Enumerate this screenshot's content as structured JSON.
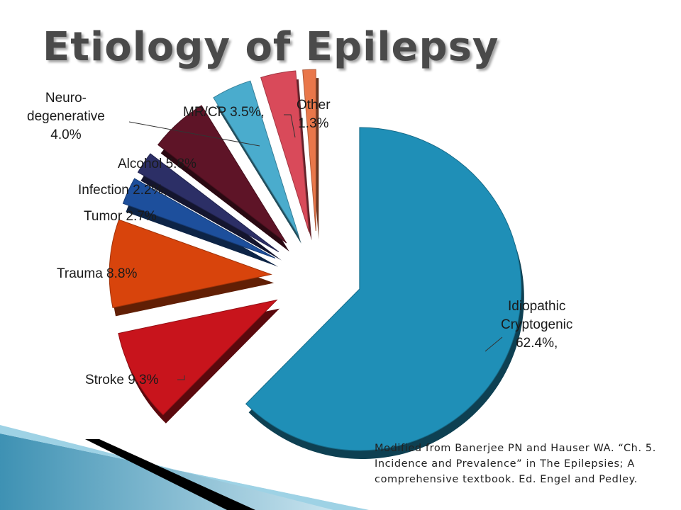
{
  "title": "Etiology of Epilepsy",
  "source_note": "Modified from Banerjee PN and Hauser WA. “Ch. 5. Incidence and Prevalence” in The Epilepsies; A comprehensive textbook. Ed. Engel and Pedley.",
  "labels": {
    "idiopathic": [
      "Idiopathic",
      "Cryptogenic",
      "62.4%,"
    ],
    "stroke": "Stroke 9.3%",
    "trauma": "Trauma 8.8%",
    "tumor": "Tumor 2.7%",
    "infection": "Infection 2.2%,",
    "alcohol": "Alcohol 5.8%",
    "neurodegenerative": [
      "Neuro-",
      "degenerative",
      "4.0%"
    ],
    "mrcp": "MR/CP 3.5%,",
    "other": [
      "Other",
      "1.3%"
    ]
  },
  "chart_data": {
    "type": "pie",
    "title": "Etiology of Epilepsy",
    "exploded": true,
    "slices": [
      {
        "name": "Idiopathic Cryptogenic",
        "value": 62.4,
        "color": "#1f8fb7"
      },
      {
        "name": "Stroke",
        "value": 9.3,
        "color": "#c8141c"
      },
      {
        "name": "Trauma",
        "value": 8.8,
        "color": "#d8440c"
      },
      {
        "name": "Tumor",
        "value": 2.7,
        "color": "#1d4f9c"
      },
      {
        "name": "Infection",
        "value": 2.2,
        "color": "#2c2f66"
      },
      {
        "name": "Alcohol",
        "value": 5.8,
        "color": "#5e1427"
      },
      {
        "name": "Neuro-degenerative",
        "value": 4.0,
        "color": "#4aaccd"
      },
      {
        "name": "MR/CP",
        "value": 3.5,
        "color": "#d94a5a"
      },
      {
        "name": "Other",
        "value": 1.3,
        "color": "#e9774a"
      }
    ]
  }
}
